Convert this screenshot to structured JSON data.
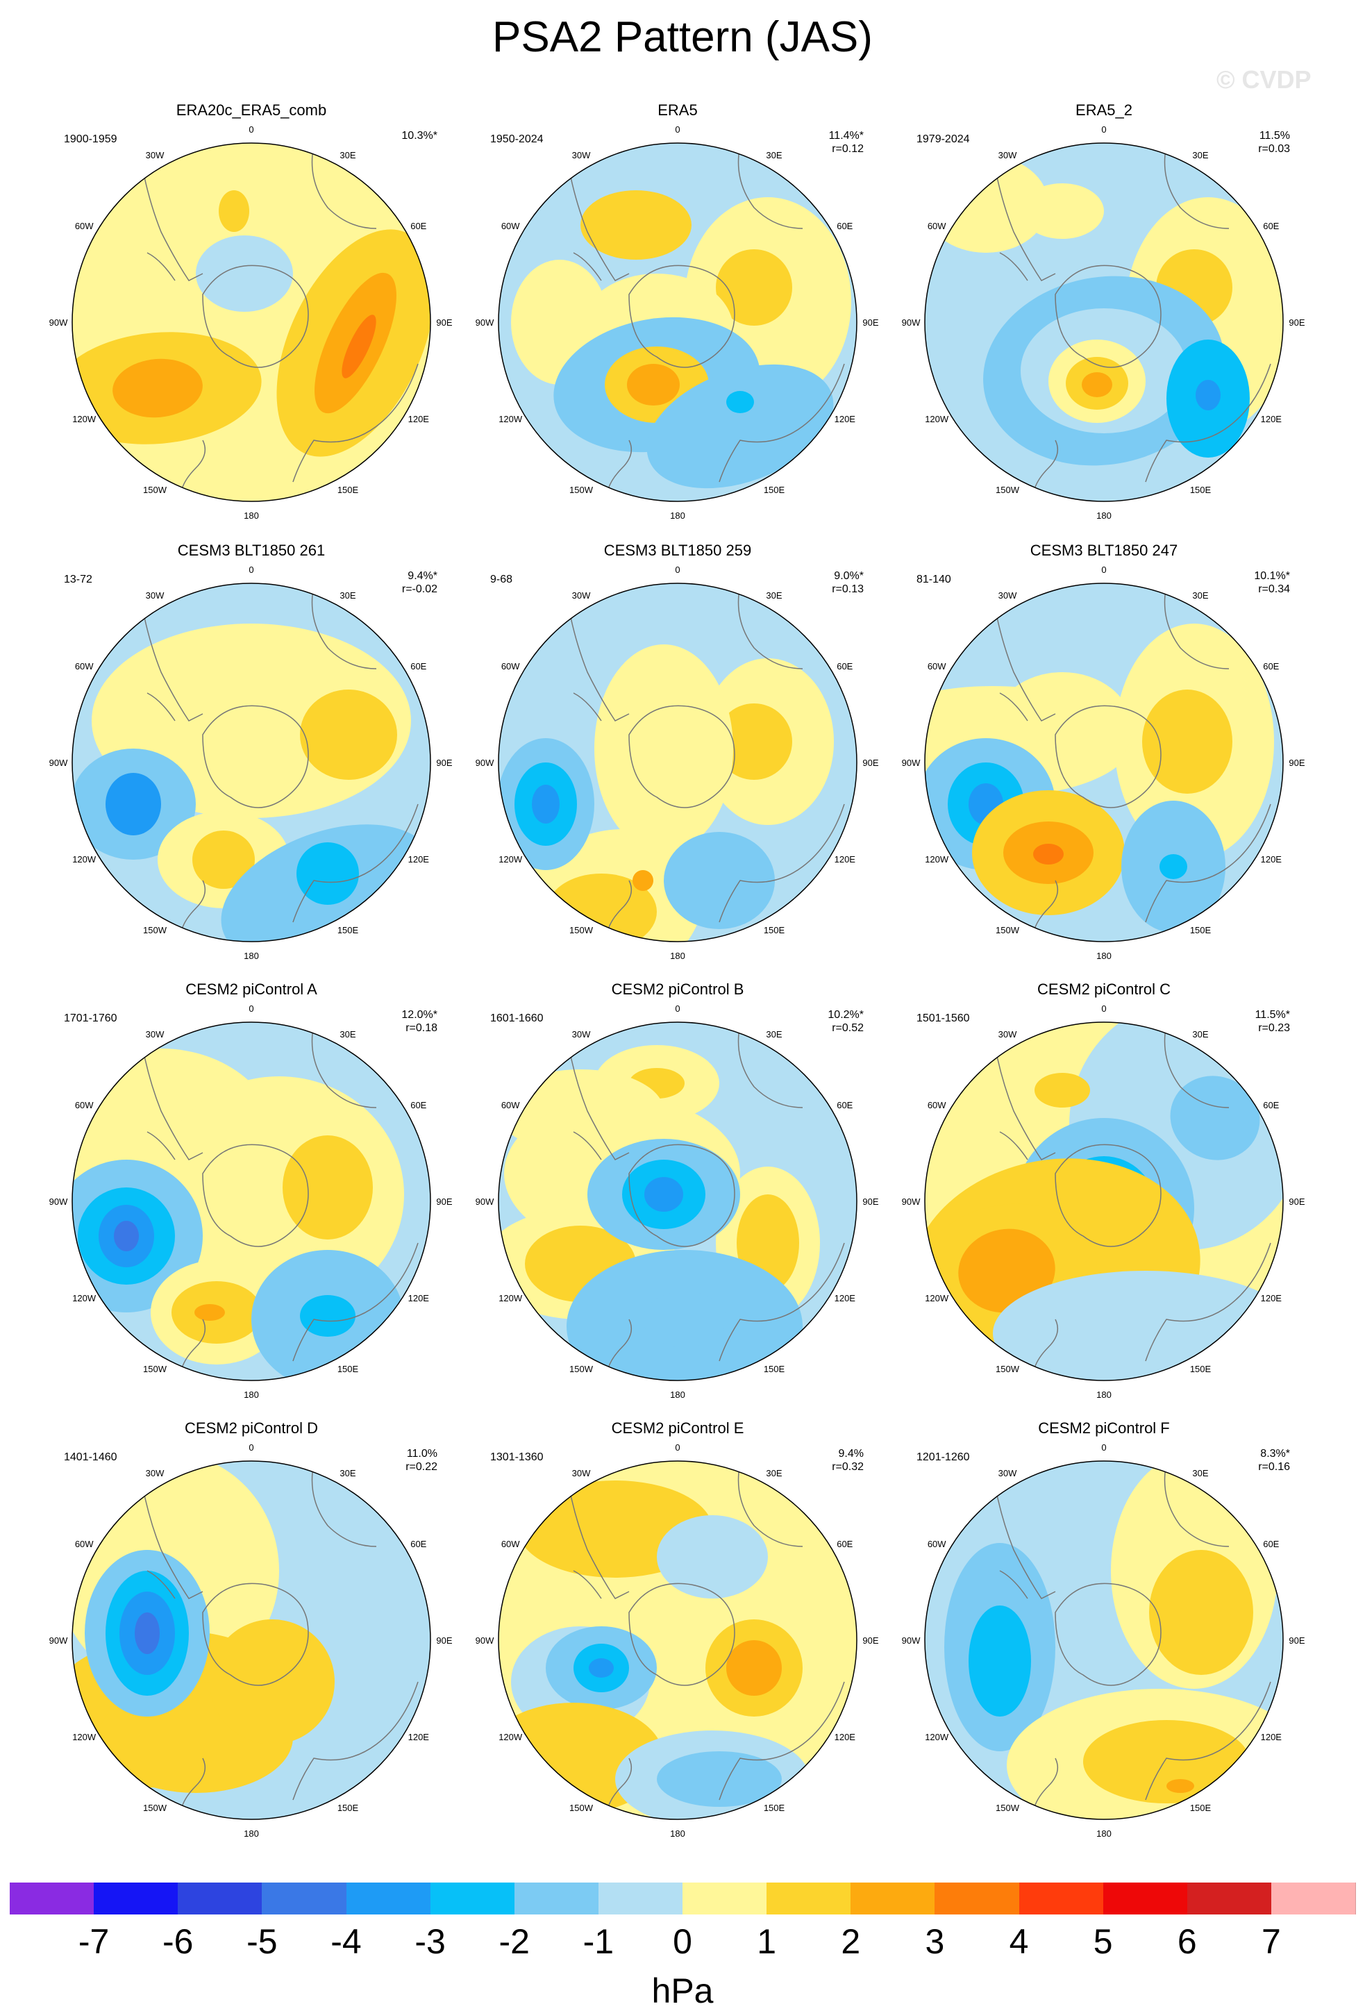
{
  "figure": {
    "title": "PSA2 Pattern (JAS)",
    "watermark": "© CVDP"
  },
  "longitude_labels": [
    "0",
    "30E",
    "60E",
    "90E",
    "120E",
    "150E",
    "180",
    "150W",
    "120W",
    "90W",
    "60W",
    "30W"
  ],
  "panels": [
    {
      "title": "ERA20c_ERA5_comb",
      "period": "1900-1959",
      "variance": "10.3%*",
      "pattern_corr": ""
    },
    {
      "title": "ERA5",
      "period": "1950-2024",
      "variance": "11.4%*",
      "pattern_corr": "r=0.12"
    },
    {
      "title": "ERA5_2",
      "period": "1979-2024",
      "variance": "11.5%",
      "pattern_corr": "r=0.03"
    },
    {
      "title": "CESM3 BLT1850 261",
      "period": "13-72",
      "variance": "9.4%*",
      "pattern_corr": "r=-0.02"
    },
    {
      "title": "CESM3 BLT1850 259",
      "period": "9-68",
      "variance": "9.0%*",
      "pattern_corr": "r=0.13"
    },
    {
      "title": "CESM3 BLT1850 247",
      "period": "81-140",
      "variance": "10.1%*",
      "pattern_corr": "r=0.34"
    },
    {
      "title": "CESM2 piControl A",
      "period": "1701-1760",
      "variance": "12.0%*",
      "pattern_corr": "r=0.18"
    },
    {
      "title": "CESM2 piControl B",
      "period": "1601-1660",
      "variance": "10.2%*",
      "pattern_corr": "r=0.52"
    },
    {
      "title": "CESM2 piControl C",
      "period": "1501-1560",
      "variance": "11.5%*",
      "pattern_corr": "r=0.23"
    },
    {
      "title": "CESM2 piControl D",
      "period": "1401-1460",
      "variance": "11.0%",
      "pattern_corr": "r=0.22"
    },
    {
      "title": "CESM2 piControl E",
      "period": "1301-1360",
      "variance": "9.4%",
      "pattern_corr": "r=0.32"
    },
    {
      "title": "CESM2 piControl F",
      "period": "1201-1260",
      "variance": "8.3%*",
      "pattern_corr": "r=0.16"
    }
  ],
  "colorbar": {
    "units": "hPa",
    "tick_labels": [
      "-7",
      "-6",
      "-5",
      "-4",
      "-3",
      "-2",
      "-1",
      "0",
      "1",
      "2",
      "3",
      "4",
      "5",
      "6",
      "7"
    ],
    "colors": [
      "#8a2be2",
      "#1515f5",
      "#2d44e0",
      "#3a78e6",
      "#1e9bf5",
      "#07c0f8",
      "#7ccbf3",
      "#b3dff3",
      "#fff799",
      "#fcd42d",
      "#fdaa0f",
      "#fd7d0a",
      "#ff3c0c",
      "#ee0808",
      "#d42020",
      "#ffb3b3"
    ]
  }
}
